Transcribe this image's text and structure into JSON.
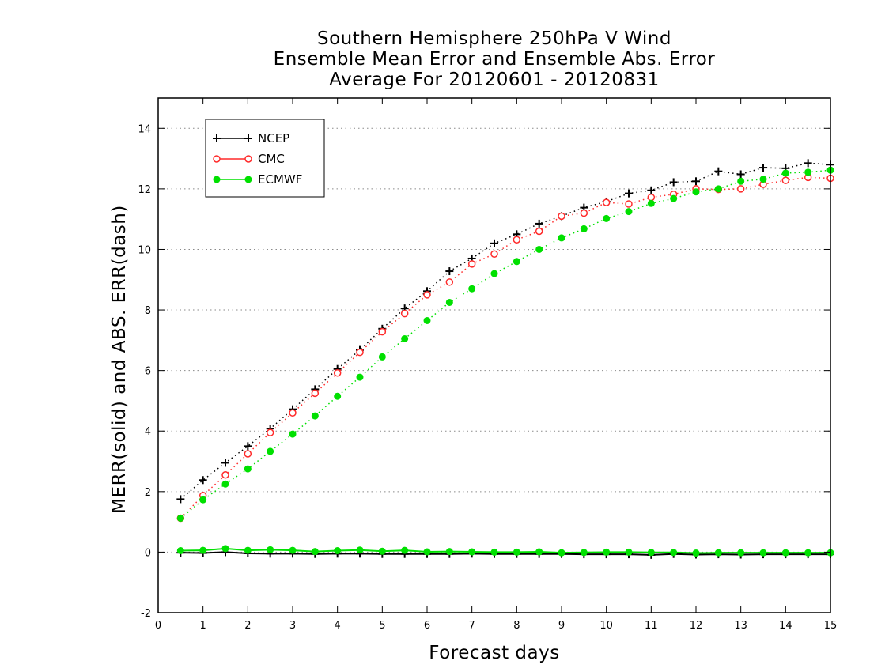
{
  "chart_data": {
    "type": "line",
    "title": [
      "Southern Hemisphere 250hPa V Wind",
      "Ensemble Mean Error and Ensemble Abs. Error",
      "Average For 20120601 - 20120831"
    ],
    "xlabel": "Forecast days",
    "ylabel": "MERR(solid) and ABS. ERR(dash)",
    "xlim": [
      0,
      15
    ],
    "ylim": [
      -2,
      15
    ],
    "xticks": [
      "0",
      "1",
      "2",
      "3",
      "4",
      "5",
      "6",
      "7",
      "8",
      "9",
      "10",
      "11",
      "12",
      "13",
      "14",
      "15"
    ],
    "yticks": [
      "-2",
      "0",
      "2",
      "4",
      "6",
      "8",
      "10",
      "12",
      "14"
    ],
    "grid": "horizontal dotted at y ticks",
    "legend_position": "top-left",
    "x": [
      0.5,
      1,
      1.5,
      2,
      2.5,
      3,
      3.5,
      4,
      4.5,
      5,
      5.5,
      6,
      6.5,
      7,
      7.5,
      8,
      8.5,
      9,
      9.5,
      10,
      10.5,
      11,
      11.5,
      12,
      12.5,
      13,
      13.5,
      14,
      14.5,
      15
    ],
    "series": [
      {
        "name": "NCEP",
        "color": "#000000",
        "marker": "plus",
        "abs_err": [
          1.75,
          2.38,
          2.95,
          3.5,
          4.08,
          4.72,
          5.38,
          6.05,
          6.68,
          7.38,
          8.05,
          8.62,
          9.28,
          9.7,
          10.2,
          10.5,
          10.85,
          11.1,
          11.38,
          11.58,
          11.85,
          11.95,
          12.22,
          12.25,
          12.58,
          12.48,
          12.7,
          12.68,
          12.85,
          12.8
        ],
        "mean_err": [
          -0.02,
          -0.03,
          0.0,
          -0.04,
          -0.05,
          -0.05,
          -0.06,
          -0.05,
          -0.05,
          -0.06,
          -0.06,
          -0.06,
          -0.06,
          -0.05,
          -0.06,
          -0.06,
          -0.06,
          -0.06,
          -0.07,
          -0.07,
          -0.07,
          -0.09,
          -0.06,
          -0.08,
          -0.07,
          -0.08,
          -0.07,
          -0.07,
          -0.07,
          -0.07
        ]
      },
      {
        "name": "CMC",
        "color": "#ff2a2a",
        "marker": "open-circle",
        "abs_err": [
          1.12,
          1.87,
          2.55,
          3.25,
          3.95,
          4.6,
          5.25,
          5.92,
          6.6,
          7.28,
          7.88,
          8.5,
          8.92,
          9.52,
          9.85,
          10.32,
          10.6,
          11.1,
          11.2,
          11.55,
          11.5,
          11.72,
          11.82,
          12.0,
          11.98,
          12.0,
          12.15,
          12.28,
          12.38,
          12.35
        ]
      },
      {
        "name": "ECMWF",
        "color": "#00e000",
        "marker": "filled-circle",
        "abs_err": [
          1.12,
          1.73,
          2.25,
          2.75,
          3.33,
          3.9,
          4.5,
          5.15,
          5.78,
          6.45,
          7.05,
          7.65,
          8.25,
          8.7,
          9.2,
          9.6,
          10.0,
          10.38,
          10.68,
          11.02,
          11.25,
          11.52,
          11.68,
          11.9,
          12.0,
          12.25,
          12.32,
          12.52,
          12.55,
          12.62
        ],
        "mean_err": [
          0.05,
          0.06,
          0.12,
          0.06,
          0.08,
          0.06,
          0.02,
          0.05,
          0.07,
          0.03,
          0.06,
          0.01,
          0.02,
          0.01,
          0.0,
          0.0,
          0.01,
          -0.02,
          -0.01,
          0.0,
          0.0,
          -0.01,
          -0.01,
          -0.03,
          -0.02,
          -0.02,
          -0.02,
          -0.02,
          -0.02,
          -0.02
        ]
      }
    ]
  }
}
